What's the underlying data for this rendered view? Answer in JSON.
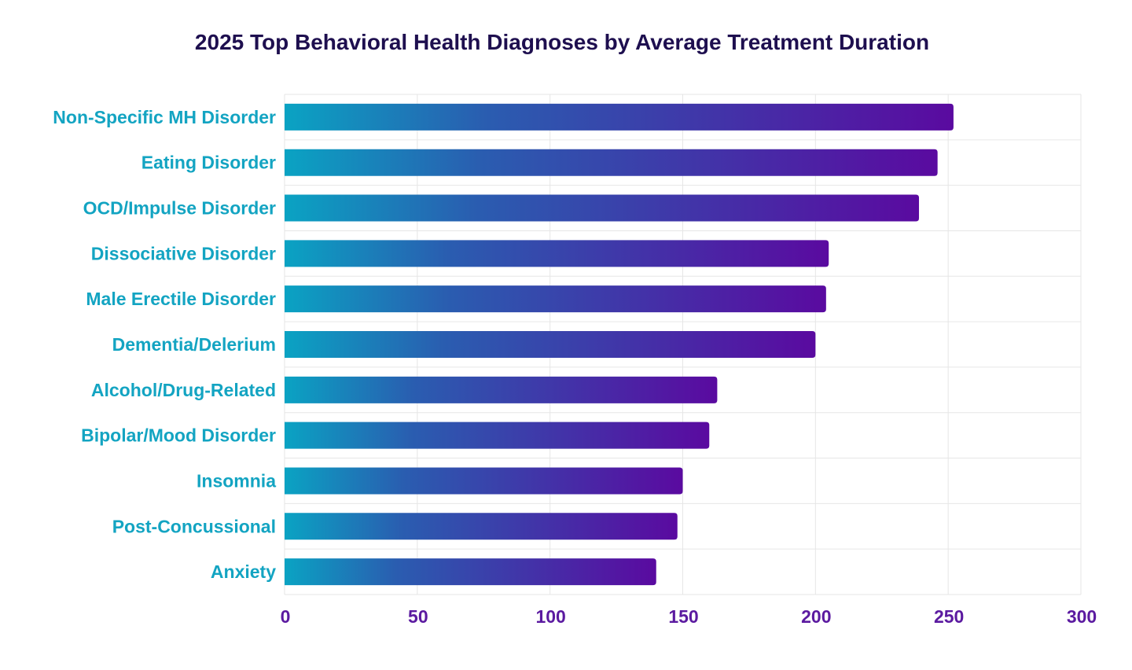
{
  "chart_data": {
    "type": "bar",
    "orientation": "horizontal",
    "title": "2025 Top Behavioral Health Diagnoses by Average Treatment Duration",
    "xlabel": "",
    "ylabel": "",
    "categories": [
      "Non-Specific MH Disorder",
      "Eating Disorder",
      "OCD/Impulse Disorder",
      "Dissociative Disorder",
      "Male Erectile Disorder",
      "Dementia/Delerium",
      "Alcohol/Drug-Related",
      "Bipolar/Mood Disorder",
      "Insomnia",
      "Post-Concussional",
      "Anxiety"
    ],
    "values": [
      252,
      246,
      239,
      205,
      204,
      200,
      163,
      160,
      150,
      148,
      140
    ],
    "xlim": [
      0,
      300
    ],
    "xticks": [
      "0",
      "50",
      "100",
      "150",
      "200",
      "250",
      "300"
    ],
    "grid": true,
    "colors": {
      "bar_start": "#0aa3c3",
      "bar_mid": "#2a5db0",
      "bar_end": "#5a0aa0",
      "category_label": "#13a4c2",
      "tick_label": "#5b1aa0",
      "title": "#1e0f4f",
      "grid": "#e6e6e6"
    }
  }
}
